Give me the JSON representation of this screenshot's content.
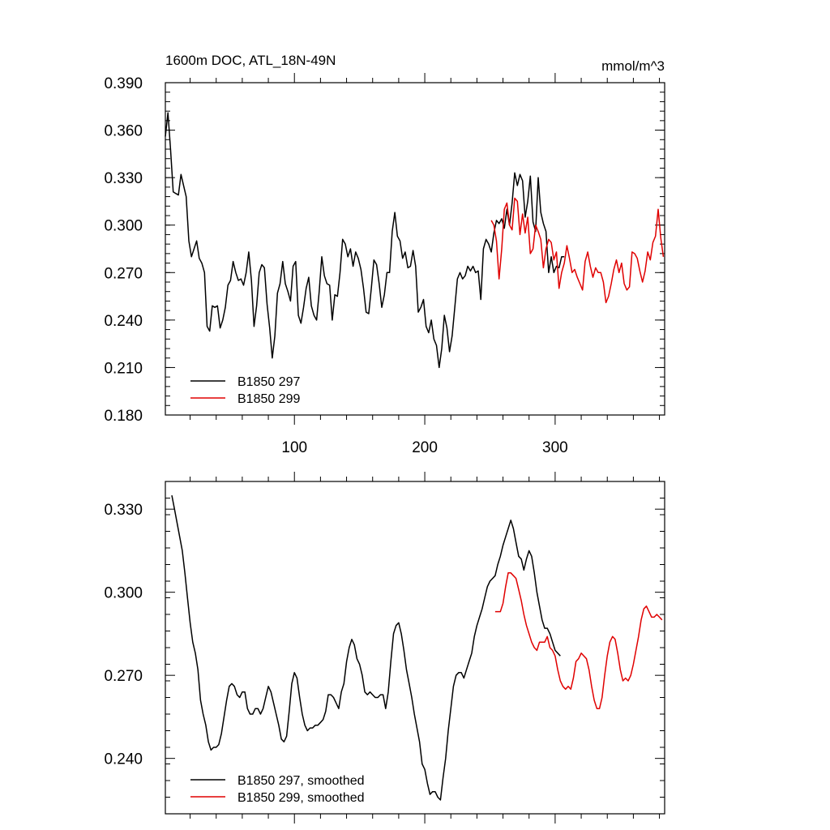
{
  "chart_data": [
    {
      "type": "line",
      "title": "1600m DOC, ATL_18N-49N",
      "units": "mmol/m^3",
      "xlim": [
        1,
        384
      ],
      "ylim": [
        0.18,
        0.39
      ],
      "xticks": [
        100,
        200,
        300
      ],
      "yticks": [
        0.18,
        0.21,
        0.24,
        0.27,
        0.3,
        0.33,
        0.36,
        0.39
      ],
      "ytick_labels": [
        "0.180",
        "0.210",
        "0.240",
        "0.270",
        "0.300",
        "0.330",
        "0.360",
        "0.390"
      ],
      "legend_position": "bottom-left",
      "series": [
        {
          "name": "B1850 297",
          "color": "#000000",
          "x": [
            1,
            3,
            5,
            7,
            9,
            11,
            13,
            15,
            17,
            19,
            21,
            23,
            25,
            27,
            29,
            31,
            33,
            35,
            37,
            39,
            41,
            43,
            45,
            47,
            49,
            51,
            53,
            55,
            57,
            59,
            61,
            63,
            65,
            67,
            69,
            71,
            73,
            75,
            77,
            79,
            81,
            83,
            85,
            87,
            89,
            91,
            93,
            95,
            97,
            99,
            101,
            103,
            105,
            107,
            109,
            111,
            113,
            115,
            117,
            119,
            121,
            123,
            125,
            127,
            129,
            131,
            133,
            135,
            137,
            139,
            141,
            143,
            145,
            147,
            149,
            151,
            153,
            155,
            157,
            159,
            161,
            163,
            165,
            167,
            169,
            171,
            173,
            175,
            177,
            179,
            181,
            183,
            185,
            187,
            189,
            191,
            193,
            195,
            197,
            199,
            201,
            203,
            205,
            207,
            209,
            211,
            213,
            215,
            217,
            219,
            221,
            223,
            225,
            227,
            229,
            231,
            233,
            235,
            237,
            239,
            241,
            243,
            245,
            247,
            249,
            251,
            253,
            255,
            257,
            259,
            261,
            263,
            265,
            267,
            269,
            271,
            273,
            275,
            277,
            279,
            281,
            283,
            285,
            287,
            289,
            291,
            293,
            295,
            297,
            299,
            301,
            303,
            305,
            307
          ],
          "values": [
            0.356,
            0.371,
            0.348,
            0.321,
            0.32,
            0.319,
            0.332,
            0.325,
            0.318,
            0.29,
            0.28,
            0.285,
            0.29,
            0.279,
            0.276,
            0.27,
            0.236,
            0.233,
            0.249,
            0.248,
            0.249,
            0.235,
            0.24,
            0.248,
            0.262,
            0.265,
            0.277,
            0.27,
            0.265,
            0.266,
            0.262,
            0.27,
            0.283,
            0.265,
            0.236,
            0.249,
            0.27,
            0.275,
            0.273,
            0.25,
            0.235,
            0.216,
            0.23,
            0.257,
            0.263,
            0.277,
            0.263,
            0.258,
            0.252,
            0.274,
            0.277,
            0.243,
            0.238,
            0.248,
            0.26,
            0.267,
            0.249,
            0.243,
            0.24,
            0.258,
            0.28,
            0.268,
            0.263,
            0.262,
            0.24,
            0.256,
            0.255,
            0.27,
            0.291,
            0.288,
            0.28,
            0.285,
            0.274,
            0.283,
            0.279,
            0.272,
            0.26,
            0.245,
            0.244,
            0.26,
            0.278,
            0.275,
            0.263,
            0.248,
            0.256,
            0.27,
            0.27,
            0.296,
            0.308,
            0.293,
            0.29,
            0.279,
            0.283,
            0.273,
            0.274,
            0.284,
            0.274,
            0.245,
            0.248,
            0.253,
            0.236,
            0.232,
            0.24,
            0.228,
            0.224,
            0.21,
            0.222,
            0.243,
            0.235,
            0.22,
            0.23,
            0.248,
            0.266,
            0.27,
            0.266,
            0.268,
            0.274,
            0.271,
            0.274,
            0.27,
            0.271,
            0.253,
            0.285,
            0.291,
            0.288,
            0.283,
            0.295,
            0.303,
            0.301,
            0.304,
            0.298,
            0.31,
            0.3,
            0.314,
            0.333,
            0.325,
            0.332,
            0.328,
            0.305,
            0.315,
            0.331,
            0.302,
            0.296,
            0.33,
            0.308,
            0.301,
            0.296,
            0.27,
            0.28,
            0.27,
            0.274,
            0.273,
            0.28,
            0.28
          ]
        },
        {
          "name": "B1850 299",
          "color": "#e00000",
          "x": [
            251,
            253,
            255,
            257,
            259,
            261,
            263,
            265,
            267,
            269,
            271,
            273,
            275,
            277,
            279,
            281,
            283,
            285,
            287,
            289,
            291,
            293,
            295,
            297,
            299,
            301,
            303,
            305,
            307,
            309,
            311,
            313,
            315,
            317,
            319,
            321,
            323,
            325,
            327,
            329,
            331,
            333,
            335,
            337,
            339,
            341,
            343,
            345,
            347,
            349,
            351,
            353,
            355,
            357,
            359,
            361,
            363,
            365,
            367,
            369,
            371,
            373,
            375,
            377,
            379,
            381,
            383
          ],
          "values": [
            0.303,
            0.3,
            0.29,
            0.266,
            0.285,
            0.31,
            0.314,
            0.3,
            0.297,
            0.317,
            0.315,
            0.294,
            0.307,
            0.295,
            0.305,
            0.282,
            0.285,
            0.3,
            0.296,
            0.291,
            0.273,
            0.285,
            0.291,
            0.289,
            0.278,
            0.283,
            0.26,
            0.27,
            0.276,
            0.287,
            0.279,
            0.27,
            0.272,
            0.267,
            0.263,
            0.259,
            0.277,
            0.283,
            0.274,
            0.267,
            0.273,
            0.27,
            0.27,
            0.264,
            0.251,
            0.255,
            0.263,
            0.272,
            0.278,
            0.27,
            0.276,
            0.263,
            0.259,
            0.261,
            0.283,
            0.282,
            0.279,
            0.271,
            0.264,
            0.271,
            0.283,
            0.278,
            0.289,
            0.293,
            0.31,
            0.292,
            0.28
          ]
        }
      ]
    },
    {
      "type": "line",
      "xlim": [
        1,
        384
      ],
      "ylim": [
        0.22,
        0.34
      ],
      "xticks": [
        100,
        200,
        300
      ],
      "yticks": [
        0.24,
        0.27,
        0.3,
        0.33
      ],
      "ytick_labels": [
        "0.240",
        "0.270",
        "0.300",
        "0.330"
      ],
      "legend_position": "bottom-left",
      "series": [
        {
          "name": "B1850 297, smoothed",
          "color": "#000000",
          "x": [
            6,
            8,
            10,
            12,
            14,
            16,
            18,
            20,
            22,
            24,
            26,
            28,
            30,
            32,
            34,
            36,
            38,
            40,
            42,
            44,
            46,
            48,
            50,
            52,
            54,
            56,
            58,
            60,
            62,
            64,
            66,
            68,
            70,
            72,
            74,
            76,
            78,
            80,
            82,
            84,
            86,
            88,
            90,
            92,
            94,
            96,
            98,
            100,
            102,
            104,
            106,
            108,
            110,
            112,
            114,
            116,
            118,
            120,
            122,
            124,
            126,
            128,
            130,
            132,
            134,
            136,
            138,
            140,
            142,
            144,
            146,
            148,
            150,
            152,
            154,
            156,
            158,
            160,
            162,
            164,
            166,
            168,
            170,
            172,
            174,
            176,
            178,
            180,
            182,
            184,
            186,
            188,
            190,
            192,
            194,
            196,
            198,
            200,
            202,
            204,
            206,
            208,
            210,
            212,
            214,
            216,
            218,
            220,
            222,
            224,
            226,
            228,
            230,
            232,
            234,
            236,
            238,
            240,
            242,
            244,
            246,
            248,
            250,
            252,
            254,
            256,
            258,
            260,
            262,
            264,
            266,
            268,
            270,
            272,
            274,
            276,
            278,
            280,
            282,
            284,
            286,
            288,
            290,
            292,
            294,
            296,
            298,
            300,
            302,
            304
          ],
          "values": [
            0.335,
            0.33,
            0.325,
            0.32,
            0.315,
            0.307,
            0.298,
            0.289,
            0.282,
            0.278,
            0.272,
            0.261,
            0.256,
            0.252,
            0.246,
            0.243,
            0.244,
            0.244,
            0.245,
            0.249,
            0.255,
            0.261,
            0.266,
            0.267,
            0.266,
            0.263,
            0.262,
            0.264,
            0.264,
            0.258,
            0.256,
            0.256,
            0.258,
            0.258,
            0.256,
            0.258,
            0.262,
            0.266,
            0.264,
            0.26,
            0.256,
            0.252,
            0.247,
            0.246,
            0.248,
            0.257,
            0.267,
            0.271,
            0.269,
            0.262,
            0.256,
            0.252,
            0.25,
            0.251,
            0.251,
            0.252,
            0.252,
            0.253,
            0.254,
            0.257,
            0.263,
            0.263,
            0.262,
            0.26,
            0.258,
            0.264,
            0.267,
            0.275,
            0.28,
            0.283,
            0.281,
            0.276,
            0.274,
            0.27,
            0.264,
            0.263,
            0.264,
            0.263,
            0.262,
            0.262,
            0.263,
            0.263,
            0.258,
            0.264,
            0.275,
            0.285,
            0.288,
            0.289,
            0.285,
            0.279,
            0.272,
            0.267,
            0.262,
            0.256,
            0.251,
            0.246,
            0.238,
            0.236,
            0.231,
            0.227,
            0.228,
            0.228,
            0.226,
            0.225,
            0.233,
            0.24,
            0.25,
            0.258,
            0.266,
            0.27,
            0.271,
            0.271,
            0.269,
            0.272,
            0.275,
            0.278,
            0.284,
            0.288,
            0.291,
            0.294,
            0.298,
            0.302,
            0.304,
            0.305,
            0.306,
            0.31,
            0.313,
            0.317,
            0.32,
            0.323,
            0.326,
            0.323,
            0.318,
            0.313,
            0.312,
            0.308,
            0.312,
            0.315,
            0.313,
            0.307,
            0.3,
            0.295,
            0.29,
            0.287,
            0.287,
            0.285,
            0.282,
            0.279,
            0.278,
            0.277
          ]
        },
        {
          "name": "B1850 299, smoothed",
          "color": "#e00000",
          "x": [
            254,
            256,
            258,
            260,
            262,
            264,
            266,
            268,
            270,
            272,
            274,
            276,
            278,
            280,
            282,
            284,
            286,
            288,
            290,
            292,
            294,
            296,
            298,
            300,
            302,
            304,
            306,
            308,
            310,
            312,
            314,
            316,
            318,
            320,
            322,
            324,
            326,
            328,
            330,
            332,
            334,
            336,
            338,
            340,
            342,
            344,
            346,
            348,
            350,
            352,
            354,
            356,
            358,
            360,
            362,
            364,
            366,
            368,
            370,
            372,
            374,
            376,
            378,
            380,
            382
          ],
          "values": [
            0.293,
            0.293,
            0.293,
            0.296,
            0.302,
            0.307,
            0.307,
            0.306,
            0.305,
            0.301,
            0.297,
            0.292,
            0.288,
            0.285,
            0.282,
            0.28,
            0.279,
            0.282,
            0.282,
            0.282,
            0.284,
            0.28,
            0.279,
            0.277,
            0.272,
            0.268,
            0.266,
            0.265,
            0.266,
            0.265,
            0.269,
            0.275,
            0.276,
            0.278,
            0.277,
            0.276,
            0.272,
            0.266,
            0.261,
            0.258,
            0.258,
            0.262,
            0.27,
            0.277,
            0.282,
            0.284,
            0.283,
            0.278,
            0.272,
            0.268,
            0.269,
            0.268,
            0.27,
            0.274,
            0.279,
            0.284,
            0.29,
            0.294,
            0.295,
            0.293,
            0.291,
            0.291,
            0.292,
            0.291,
            0.29
          ]
        }
      ]
    }
  ]
}
